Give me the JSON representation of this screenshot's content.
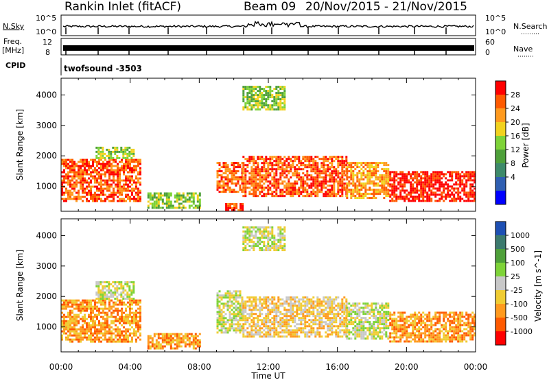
{
  "header": {
    "station": "Rankin Inlet (fitACF)",
    "beam": "Beam 09",
    "date_range": "20/Nov/2015 - 21/Nov/2015"
  },
  "noise_panel": {
    "left_label": "N.Sky",
    "left_ticks": [
      "10^5",
      "10^0"
    ],
    "right_ticks": [
      "10^5",
      "10^0"
    ],
    "right_label": "N.Search"
  },
  "freq_panel": {
    "left_label_1": "Freq.",
    "left_label_2": "[MHz]",
    "left_ticks": [
      "12",
      "8"
    ],
    "right_ticks": [
      "60",
      "0"
    ],
    "right_label": "Nave"
  },
  "cpid_panel": {
    "label": "CPID",
    "program": "twofsound -3503"
  },
  "axes": {
    "y_label": "Slant Range [km]",
    "y_ticks": [
      "4000",
      "3000",
      "2000",
      "1000"
    ],
    "x_label": "Time UT",
    "x_ticks": [
      "00:00",
      "04:00",
      "08:00",
      "12:00",
      "16:00",
      "20:00",
      "00:00"
    ]
  },
  "chart_data": [
    {
      "type": "heatmap",
      "parameter": "Power",
      "colorbar_label": "Power [dB]",
      "colorbar_ticks": [
        "28",
        "24",
        "20",
        "16",
        "12",
        "8",
        "4"
      ],
      "colorbar_colors": [
        "#ff0000",
        "#ff5a00",
        "#ff9a1e",
        "#f2d21e",
        "#7ed338",
        "#4ea03a",
        "#3d8a6a",
        "#2f5fb2",
        "#0000ff"
      ],
      "xlim_hours": [
        0,
        24
      ],
      "ylim_km": [
        180,
        4550
      ],
      "echo_regions": [
        {
          "t_start": 0.0,
          "t_end": 4.6,
          "r_low": 500,
          "r_high": 1900,
          "power_db": 26
        },
        {
          "t_start": 2.0,
          "t_end": 4.2,
          "r_low": 1900,
          "r_high": 2300,
          "power_db": 14
        },
        {
          "t_start": 5.0,
          "t_end": 8.0,
          "r_low": 300,
          "r_high": 800,
          "power_db": 14
        },
        {
          "t_start": 9.0,
          "t_end": 10.5,
          "r_low": 800,
          "r_high": 1800,
          "power_db": 26
        },
        {
          "t_start": 10.5,
          "t_end": 16.5,
          "r_low": 700,
          "r_high": 2000,
          "power_db": 24
        },
        {
          "t_start": 16.5,
          "t_end": 19.0,
          "r_low": 600,
          "r_high": 1800,
          "power_db": 22
        },
        {
          "t_start": 19.0,
          "t_end": 24.0,
          "r_low": 500,
          "r_high": 1500,
          "power_db": 28
        },
        {
          "t_start": 10.5,
          "t_end": 13.0,
          "r_low": 3500,
          "r_high": 4300,
          "power_db": 12
        },
        {
          "t_start": 9.5,
          "t_end": 10.5,
          "r_low": 200,
          "r_high": 450,
          "power_db": 26
        }
      ]
    },
    {
      "type": "heatmap",
      "parameter": "Velocity",
      "colorbar_label": "Velocity [m s^-1]",
      "colorbar_ticks": [
        "1000",
        "500",
        "100",
        "25",
        "-25",
        "-100",
        "-500",
        "-1000"
      ],
      "colorbar_colors": [
        "#1e50b4",
        "#3c7a6e",
        "#4ea03a",
        "#7ed338",
        "#c8c8c8",
        "#f0cc32",
        "#ff9a1e",
        "#ff5a00",
        "#ff0000"
      ],
      "xlim_hours": [
        0,
        24
      ],
      "ylim_km": [
        180,
        4550
      ],
      "echo_regions": [
        {
          "t_start": 0.0,
          "t_end": 4.6,
          "r_low": 500,
          "r_high": 1900,
          "velocity_ms": -150
        },
        {
          "t_start": 2.0,
          "t_end": 4.2,
          "r_low": 1900,
          "r_high": 2500,
          "velocity_ms": 0
        },
        {
          "t_start": 5.0,
          "t_end": 8.0,
          "r_low": 300,
          "r_high": 800,
          "velocity_ms": -200
        },
        {
          "t_start": 9.0,
          "t_end": 10.5,
          "r_low": 800,
          "r_high": 2200,
          "velocity_ms": 20
        },
        {
          "t_start": 10.5,
          "t_end": 16.5,
          "r_low": 700,
          "r_high": 2000,
          "velocity_ms": -100
        },
        {
          "t_start": 16.5,
          "t_end": 19.0,
          "r_low": 600,
          "r_high": 1800,
          "velocity_ms": 0
        },
        {
          "t_start": 19.0,
          "t_end": 24.0,
          "r_low": 500,
          "r_high": 1500,
          "velocity_ms": -200
        },
        {
          "t_start": 10.5,
          "t_end": 13.0,
          "r_low": 3500,
          "r_high": 4300,
          "velocity_ms": 0
        }
      ]
    }
  ]
}
